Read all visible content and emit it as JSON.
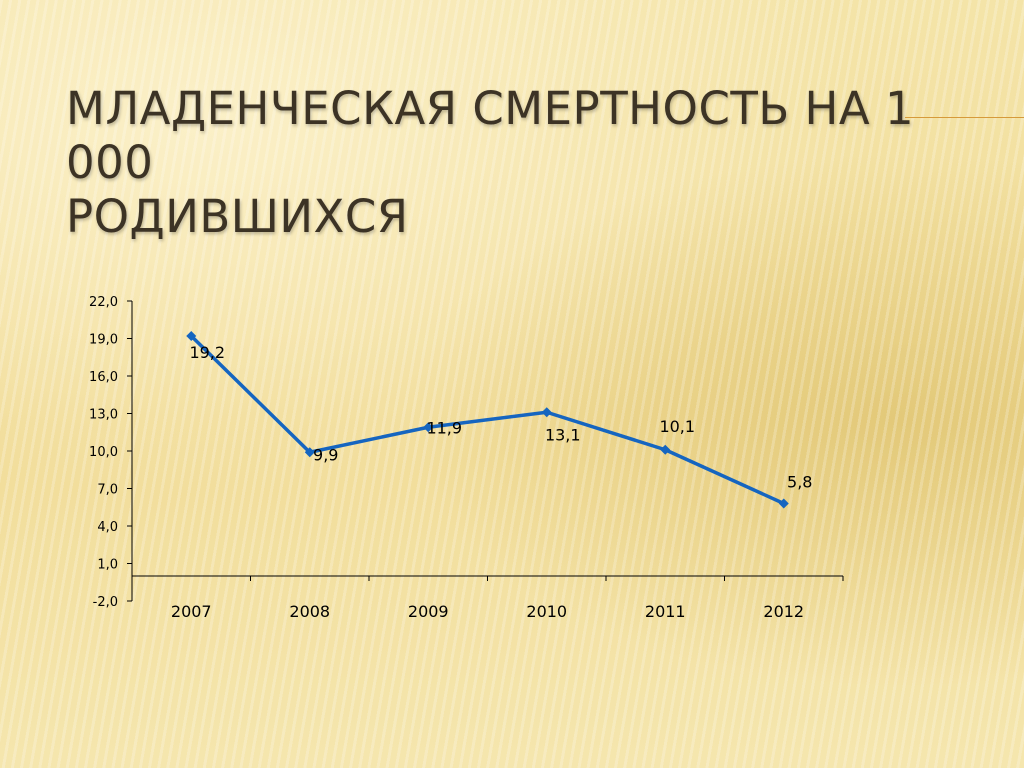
{
  "slide": {
    "title_line1": "Младенческая смертность на 1 000",
    "title_line2": "родившихся",
    "accent_color": "#d69a3a"
  },
  "chart_data": {
    "type": "line",
    "categories": [
      "2007",
      "2008",
      "2009",
      "2010",
      "2011",
      "2012"
    ],
    "values": [
      19.2,
      9.9,
      11.9,
      13.1,
      10.1,
      5.8
    ],
    "data_labels": [
      "19,2",
      "9,9",
      "11,9",
      "13,1",
      "10,1",
      "5,8"
    ],
    "y_ticks": [
      -2.0,
      1.0,
      4.0,
      7.0,
      10.0,
      13.0,
      16.0,
      19.0,
      22.0
    ],
    "y_tick_labels": [
      "-2,0",
      "1,0",
      "4,0",
      "7,0",
      "10,0",
      "13,0",
      "16,0",
      "19,0",
      "22,0"
    ],
    "ylim": [
      -2.0,
      22.0
    ],
    "x_axis_crosses_at": 0,
    "line_color": "#1565c0",
    "grid": false,
    "legend": "none"
  }
}
